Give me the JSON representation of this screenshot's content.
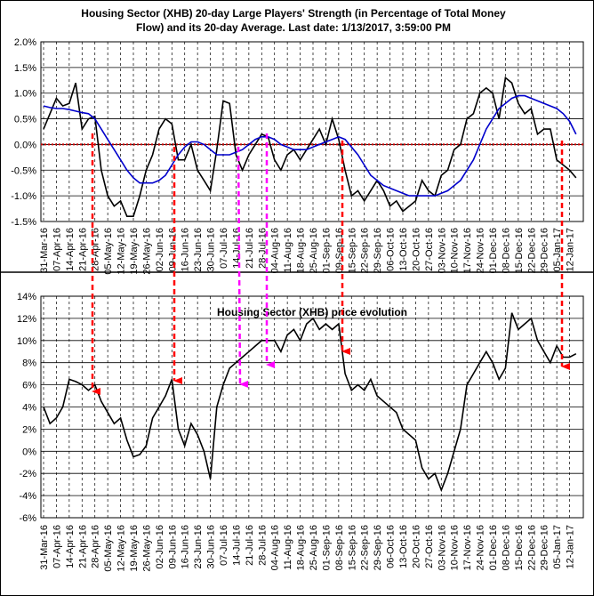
{
  "chart_data": [
    {
      "type": "line",
      "title": "Housing Sector (XHB) 20-day Large Players' Strength (in Percentage of Total Money Flow) and its 20-day Average. Last date: 1/13/2017, 3:59:00 PM",
      "categories": [
        "31-Mar-16",
        null,
        "07-Apr-16",
        null,
        "14-Apr-16",
        null,
        "21-Apr-16",
        null,
        "28-Apr-16",
        null,
        "05-May-16",
        null,
        "12-May-16",
        null,
        "19-May-16",
        null,
        "26-May-16",
        null,
        "02-Jun-16",
        null,
        "09-Jun-16",
        null,
        "16-Jun-16",
        null,
        "23-Jun-16",
        null,
        "30-Jun-16",
        null,
        "07-Jul-16",
        null,
        "14-Jul-16",
        null,
        "21-Jul-16",
        null,
        "28-Jul-16",
        null,
        "04-Aug-16",
        null,
        "11-Aug-16",
        null,
        "18-Aug-16",
        null,
        "25-Aug-16",
        null,
        "01-Sep-16",
        null,
        "09-Sep-16",
        null,
        "15-Sep-16",
        null,
        "22-Sep-16",
        null,
        "29-Sep-16",
        null,
        "06-Oct-16",
        null,
        "13-Oct-16",
        null,
        "20-Oct-16",
        null,
        "27-Oct-16",
        null,
        "03-Nov-16",
        null,
        "10-Nov-16",
        null,
        "17-Nov-16",
        null,
        "24-Nov-16",
        null,
        "01-Dec-16",
        null,
        "08-Dec-16",
        null,
        "15-Dec-16",
        null,
        "22-Dec-16",
        null,
        "29-Dec-16",
        null,
        "05-Jan-17",
        null,
        "12-Jan-17",
        null
      ],
      "series": [
        {
          "color": "#000000",
          "values": [
            0.3,
            0.6,
            0.9,
            0.75,
            0.8,
            1.2,
            0.3,
            0.5,
            0.55,
            -0.5,
            -1.0,
            -1.2,
            -1.1,
            -1.4,
            -1.4,
            -1.0,
            -0.5,
            -0.2,
            0.3,
            0.5,
            0.4,
            -0.3,
            -0.3,
            0.0,
            -0.5,
            -0.7,
            -0.9,
            -0.1,
            0.85,
            0.8,
            -0.2,
            -0.5,
            -0.2,
            0.0,
            0.2,
            0.15,
            -0.3,
            -0.5,
            -0.2,
            -0.1,
            -0.3,
            -0.1,
            0.1,
            0.3,
            0.0,
            0.5,
            0.1,
            -0.5,
            -1.0,
            -0.9,
            -1.1,
            -0.9,
            -0.7,
            -0.9,
            -1.2,
            -1.1,
            -1.3,
            -1.2,
            -1.1,
            -0.7,
            -0.9,
            -1.0,
            -0.6,
            -0.5,
            -0.1,
            0.0,
            0.5,
            0.6,
            1.0,
            1.1,
            1.0,
            0.5,
            1.3,
            1.2,
            0.8,
            0.6,
            0.7,
            0.2,
            0.3,
            0.3,
            -0.3,
            -0.4,
            -0.5,
            -0.65
          ]
        },
        {
          "color": "#0000cc",
          "values": [
            0.75,
            0.72,
            0.7,
            0.7,
            0.68,
            0.65,
            0.62,
            0.6,
            0.5,
            0.3,
            0.1,
            -0.1,
            -0.3,
            -0.5,
            -0.65,
            -0.75,
            -0.75,
            -0.75,
            -0.7,
            -0.6,
            -0.4,
            -0.2,
            -0.05,
            0.05,
            0.05,
            0.0,
            -0.1,
            -0.2,
            -0.2,
            -0.2,
            -0.15,
            -0.1,
            0.0,
            0.1,
            0.15,
            0.15,
            0.1,
            0.0,
            -0.05,
            -0.1,
            -0.1,
            -0.1,
            -0.05,
            0.0,
            0.05,
            0.1,
            0.15,
            0.1,
            -0.05,
            -0.2,
            -0.4,
            -0.6,
            -0.7,
            -0.8,
            -0.85,
            -0.9,
            -0.95,
            -1.0,
            -1.0,
            -1.0,
            -1.0,
            -1.0,
            -0.95,
            -0.9,
            -0.8,
            -0.7,
            -0.5,
            -0.3,
            0.0,
            0.3,
            0.5,
            0.7,
            0.8,
            0.9,
            0.95,
            0.95,
            0.9,
            0.85,
            0.8,
            0.75,
            0.7,
            0.6,
            0.45,
            0.2
          ]
        }
      ],
      "ylim": [
        -1.5,
        2.0
      ],
      "yticks": [
        {
          "value": -1.5,
          "label": "-1.5%"
        },
        {
          "value": -1.0,
          "label": "-1.0%"
        },
        {
          "value": -0.5,
          "label": "-0.5%"
        },
        {
          "value": 0.0,
          "label": "0.0%"
        },
        {
          "value": 0.5,
          "label": "0.5%"
        },
        {
          "value": 1.0,
          "label": "1.0%"
        },
        {
          "value": 1.5,
          "label": "1.5%"
        },
        {
          "value": 2.0,
          "label": "2.0%"
        }
      ],
      "grid": true
    },
    {
      "type": "line",
      "title": "Housing Sector (XHB) price evolution",
      "categories": [
        "31-Mar-16",
        null,
        "07-Apr-16",
        null,
        "14-Apr-16",
        null,
        "21-Apr-16",
        null,
        "28-Apr-16",
        null,
        "05-May-16",
        null,
        "12-May-16",
        null,
        "19-May-16",
        null,
        "26-May-16",
        null,
        "02-Jun-16",
        null,
        "09-Jun-16",
        null,
        "16-Jun-16",
        null,
        "23-Jun-16",
        null,
        "30-Jun-16",
        null,
        "07-Jul-16",
        null,
        "14-Jul-16",
        null,
        "21-Jul-16",
        null,
        "28-Jul-16",
        null,
        "04-Aug-16",
        null,
        "11-Aug-16",
        null,
        "18-Aug-16",
        null,
        "25-Aug-16",
        null,
        "01-Sep-16",
        null,
        "08-Sep-16",
        null,
        "15-Sep-16",
        null,
        "22-Sep-16",
        null,
        "29-Sep-16",
        null,
        "06-Oct-16",
        null,
        "13-Oct-16",
        null,
        "20-Oct-16",
        null,
        "27-Oct-16",
        null,
        "03-Nov-16",
        null,
        "10-Nov-16",
        null,
        "17-Nov-16",
        null,
        "24-Nov-16",
        null,
        "01-Dec-16",
        null,
        "08-Dec-16",
        null,
        "15-Dec-16",
        null,
        "22-Dec-16",
        null,
        "29-Dec-16",
        null,
        "05-Jan-17",
        null,
        "12-Jan-17",
        null
      ],
      "series": [
        {
          "color": "#000000",
          "values": [
            4,
            2.5,
            3,
            4,
            6.5,
            6.3,
            6,
            5.5,
            6,
            4.5,
            3.5,
            2.5,
            3,
            1,
            -0.5,
            -0.3,
            0.5,
            3,
            4,
            5,
            6.5,
            2,
            0.5,
            2.5,
            1.5,
            0,
            -2.5,
            4,
            6,
            7.5,
            8,
            8.5,
            9,
            9.5,
            10,
            10,
            10,
            9,
            10.5,
            11,
            10,
            11.5,
            12,
            11,
            11.5,
            11,
            11.5,
            7,
            5.5,
            6,
            5.5,
            6.5,
            5,
            4.5,
            4,
            3.5,
            2,
            1.5,
            1,
            -1.5,
            -2.5,
            -2,
            -3.5,
            -2,
            0,
            2,
            6,
            7,
            8,
            9,
            8,
            6.5,
            7.5,
            12.5,
            11,
            11.5,
            12,
            10,
            9,
            8,
            9.5,
            8.5,
            8.5,
            8.8
          ]
        }
      ],
      "ylim": [
        -6,
        14
      ],
      "yticks": [
        {
          "value": -6,
          "label": "-6%"
        },
        {
          "value": -4,
          "label": "-4%"
        },
        {
          "value": -2,
          "label": "-2%"
        },
        {
          "value": 0,
          "label": "0%"
        },
        {
          "value": 2,
          "label": "2%"
        },
        {
          "value": 4,
          "label": "4%"
        },
        {
          "value": 6,
          "label": "6%"
        },
        {
          "value": 8,
          "label": "8%"
        },
        {
          "value": 10,
          "label": "10%"
        },
        {
          "value": 12,
          "label": "12%"
        },
        {
          "value": 14,
          "label": "14%"
        }
      ],
      "grid": true
    }
  ]
}
